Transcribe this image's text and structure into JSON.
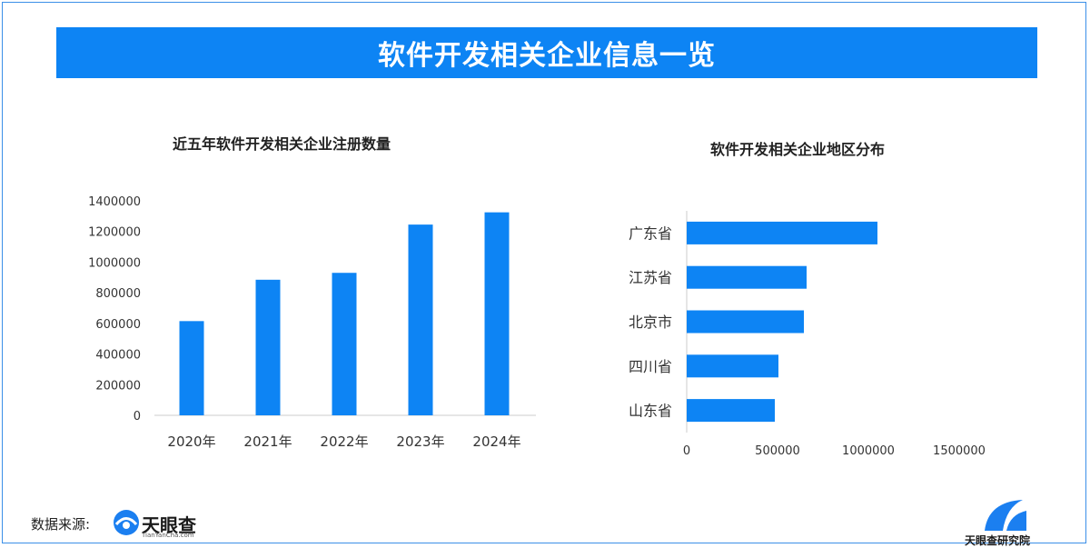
{
  "header": {
    "title": "软件开发相关企业信息一览"
  },
  "colors": {
    "accent": "#0d84f4",
    "bar": "#0d84f4",
    "axis": "#cccccc"
  },
  "chart_data": [
    {
      "type": "bar",
      "title": "近五年软件开发相关企业注册数量",
      "categories": [
        "2020年",
        "2021年",
        "2022年",
        "2023年",
        "2024年"
      ],
      "values": [
        615000,
        885000,
        930000,
        1245000,
        1325000
      ],
      "yticks": [
        "0",
        "200000",
        "400000",
        "600000",
        "800000",
        "1000000",
        "1200000",
        "1400000"
      ],
      "ylim": [
        0,
        1400000
      ],
      "xlabel": "",
      "ylabel": ""
    },
    {
      "type": "barh",
      "title": "软件开发相关企业地区分布",
      "categories": [
        "广东省",
        "江苏省",
        "北京市",
        "四川省",
        "山东省"
      ],
      "values": [
        1050000,
        660000,
        645000,
        505000,
        485000
      ],
      "xticks": [
        "0",
        "500000",
        "1000000",
        "1500000"
      ],
      "xlim": [
        0,
        1500000
      ],
      "xlabel": "",
      "ylabel": ""
    }
  ],
  "footer": {
    "source_label": "数据来源:",
    "logo_name": "天眼查",
    "logo_sub": "TianYanCha.com",
    "brand_right": "天眼查研究院"
  }
}
